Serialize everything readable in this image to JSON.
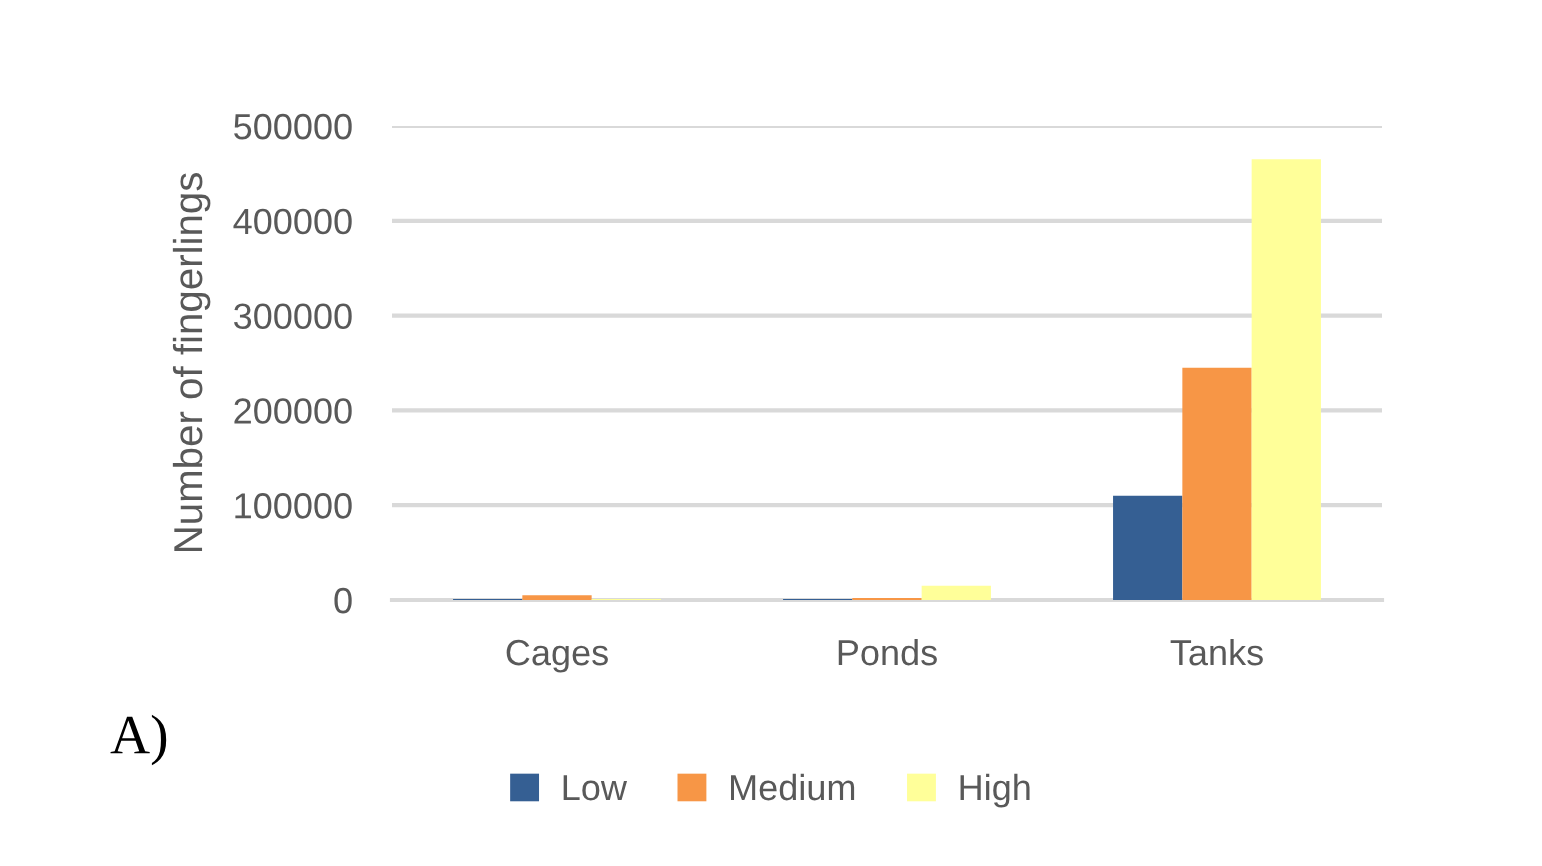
{
  "chart_data": {
    "type": "bar",
    "categories": [
      "Cages",
      "Ponds",
      "Tanks"
    ],
    "ylabel": "Number of fingerlings",
    "series": [
      {
        "name": "Low",
        "color": "#355f93",
        "values": [
          1000,
          1000,
          110000
        ]
      },
      {
        "name": "Medium",
        "color": "#f79646",
        "values": [
          5000,
          2000,
          245000
        ]
      },
      {
        "name": "High",
        "color": "#ffff99",
        "values": [
          1000,
          15000,
          465000
        ]
      }
    ],
    "ylim": [
      0,
      500000
    ],
    "yticks": [
      0,
      100000,
      200000,
      300000,
      400000,
      500000
    ],
    "grid": "y",
    "legend": "bottom",
    "annotations": [
      "A)"
    ]
  }
}
